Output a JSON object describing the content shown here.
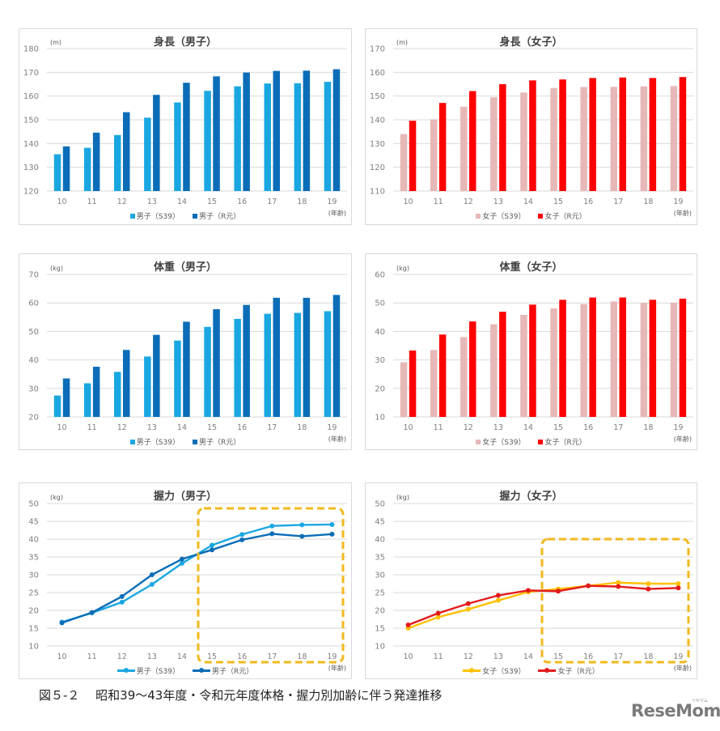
{
  "caption": "図５-２　 昭和39～43年度・令和元年度体格・握力別加齢に伴う発達推移",
  "logo": {
    "text": "ReseMom",
    "kana": "リセマム"
  },
  "colors": {
    "male_s39": "#1aa7e1",
    "male_r1": "#0b6db7",
    "female_s39": "#e6b8b7",
    "female_r1": "#ff0000",
    "female_grip_s39": "#ffc000",
    "female_grip_r1": "#e31a1c",
    "highlight": "#f2b91e",
    "grid": "#d9d9d9"
  },
  "chart_data": [
    {
      "id": "height_male",
      "type": "bar",
      "title": "身長（男子）",
      "unit": "(m)",
      "xlabel": "(年齢)",
      "categories": [
        "10",
        "11",
        "12",
        "13",
        "14",
        "15",
        "16",
        "17",
        "18",
        "19"
      ],
      "ylim": [
        120,
        180
      ],
      "yticks": [
        120,
        130,
        140,
        150,
        160,
        170,
        180
      ],
      "grid": true,
      "legend_position": "bottom",
      "series": [
        {
          "name": "男子（S39）",
          "color": "#1aa7e1",
          "values": [
            135.5,
            138.2,
            143.6,
            150.9,
            157.3,
            162.2,
            164.1,
            165.3,
            165.4,
            166.0
          ]
        },
        {
          "name": "男子（R元）",
          "color": "#0b6db7",
          "values": [
            138.8,
            144.6,
            153.2,
            160.5,
            165.6,
            168.3,
            169.9,
            170.6,
            170.7,
            171.3
          ]
        }
      ]
    },
    {
      "id": "height_female",
      "type": "bar",
      "title": "身長（女子）",
      "unit": "(m)",
      "xlabel": "(年齢)",
      "categories": [
        "10",
        "11",
        "12",
        "13",
        "14",
        "15",
        "16",
        "17",
        "18",
        "19"
      ],
      "ylim": [
        110,
        170
      ],
      "yticks": [
        110,
        120,
        130,
        140,
        150,
        160,
        170
      ],
      "grid": true,
      "legend_position": "bottom",
      "series": [
        {
          "name": "女子（S39）",
          "color": "#e6b8b7",
          "values": [
            134.0,
            140.2,
            145.5,
            149.5,
            151.5,
            153.4,
            153.8,
            153.9,
            154.1,
            154.2
          ]
        },
        {
          "name": "女子（R元）",
          "color": "#ff0000",
          "values": [
            139.6,
            147.1,
            152.1,
            155.0,
            156.6,
            157.0,
            157.6,
            157.8,
            157.6,
            158.0
          ]
        }
      ]
    },
    {
      "id": "weight_male",
      "type": "bar",
      "title": "体重（男子）",
      "unit": "(kg)",
      "xlabel": "(年齢)",
      "categories": [
        "10",
        "11",
        "12",
        "13",
        "14",
        "15",
        "16",
        "17",
        "18",
        "19"
      ],
      "ylim": [
        20,
        70
      ],
      "yticks": [
        20,
        30,
        40,
        50,
        60,
        70
      ],
      "grid": true,
      "legend_position": "bottom",
      "series": [
        {
          "name": "男子（S39）",
          "color": "#1aa7e1",
          "values": [
            27.5,
            31.8,
            35.8,
            41.2,
            46.8,
            51.6,
            54.4,
            56.2,
            56.5,
            57.1
          ]
        },
        {
          "name": "男子（R元）",
          "color": "#0b6db7",
          "values": [
            33.5,
            37.6,
            43.5,
            48.8,
            53.4,
            57.8,
            59.3,
            61.8,
            61.8,
            62.8
          ]
        }
      ]
    },
    {
      "id": "weight_female",
      "type": "bar",
      "title": "体重（女子）",
      "unit": "(kg)",
      "xlabel": "(年齢)",
      "categories": [
        "10",
        "11",
        "12",
        "13",
        "14",
        "15",
        "16",
        "17",
        "18",
        "19"
      ],
      "ylim": [
        10,
        60
      ],
      "yticks": [
        10,
        20,
        30,
        40,
        50,
        60
      ],
      "grid": true,
      "legend_position": "bottom",
      "series": [
        {
          "name": "女子（S39）",
          "color": "#e6b8b7",
          "values": [
            29.2,
            33.5,
            38.0,
            42.5,
            45.8,
            48.1,
            49.6,
            50.5,
            50.0,
            50.1
          ]
        },
        {
          "name": "女子（R元）",
          "color": "#ff0000",
          "values": [
            33.3,
            38.9,
            43.5,
            46.9,
            49.4,
            51.1,
            51.9,
            51.9,
            51.1,
            51.5
          ]
        }
      ]
    },
    {
      "id": "grip_male",
      "type": "line",
      "title": "握力（男子）",
      "unit": "(kg)",
      "xlabel": "(年齢)",
      "categories": [
        "10",
        "11",
        "12",
        "13",
        "14",
        "15",
        "16",
        "17",
        "18",
        "19"
      ],
      "ylim": [
        10,
        50
      ],
      "yticks": [
        10,
        15,
        20,
        25,
        30,
        35,
        40,
        45,
        50
      ],
      "grid": true,
      "legend_position": "bottom",
      "annotation": "Dashed highlight box around ages 15–19",
      "series": [
        {
          "name": "男子（S39）",
          "color": "#1aa7e1",
          "values": [
            16.7,
            19.3,
            22.3,
            27.3,
            33.2,
            38.3,
            41.3,
            43.7,
            44.0,
            44.1
          ]
        },
        {
          "name": "男子（R元）",
          "color": "#0b6db7",
          "values": [
            16.5,
            19.4,
            23.9,
            30.0,
            34.4,
            37.0,
            39.8,
            41.5,
            40.8,
            41.4
          ]
        }
      ]
    },
    {
      "id": "grip_female",
      "type": "line",
      "title": "握力（女子）",
      "unit": "(kg)",
      "xlabel": "(年齢)",
      "categories": [
        "10",
        "11",
        "12",
        "13",
        "14",
        "15",
        "16",
        "17",
        "18",
        "19"
      ],
      "ylim": [
        10,
        50
      ],
      "yticks": [
        10,
        15,
        20,
        25,
        30,
        35,
        40,
        45,
        50
      ],
      "grid": true,
      "legend_position": "bottom",
      "annotation": "Dashed highlight box around ages 15–19",
      "series": [
        {
          "name": "女子（S39）",
          "color": "#ffc000",
          "values": [
            15.0,
            18.1,
            20.3,
            22.8,
            25.2,
            26.0,
            26.9,
            27.8,
            27.5,
            27.5
          ]
        },
        {
          "name": "女子（R元）",
          "color": "#e31a1c",
          "values": [
            15.9,
            19.2,
            21.9,
            24.2,
            25.6,
            25.4,
            26.9,
            26.7,
            26.0,
            26.3
          ]
        }
      ]
    }
  ]
}
